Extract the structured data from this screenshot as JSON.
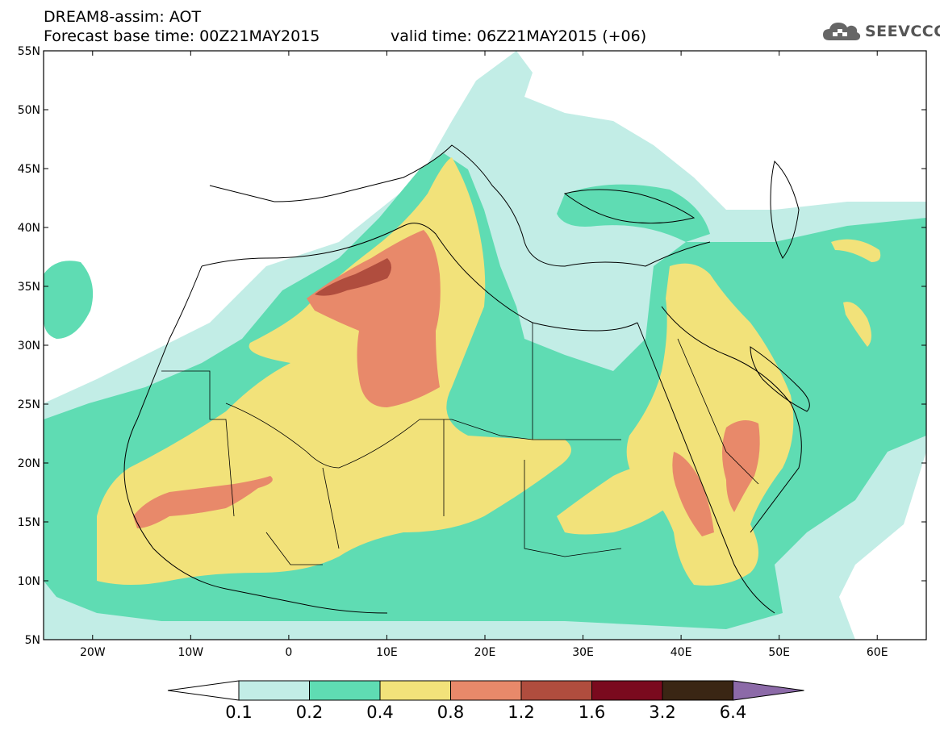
{
  "header": {
    "title_line1": "DREAM8-assim: AOT",
    "title_line2": "Forecast base time: 00Z21MAY2015",
    "valid_time": "valid time: 06Z21MAY2015 (+06)",
    "logo_text": "SEEVCCC"
  },
  "map": {
    "lon_range": [
      -25,
      65
    ],
    "lat_range": [
      5,
      55
    ],
    "lat_ticks": [
      "55N",
      "50N",
      "45N",
      "40N",
      "35N",
      "30N",
      "25N",
      "20N",
      "15N",
      "10N",
      "5N"
    ],
    "lon_ticks": [
      "20W",
      "10W",
      "0",
      "10E",
      "20E",
      "30E",
      "40E",
      "50E",
      "60E"
    ]
  },
  "colorbar": {
    "levels": [
      "0.1",
      "0.2",
      "0.4",
      "0.8",
      "1.2",
      "1.6",
      "3.2",
      "6.4"
    ],
    "colors": [
      "#ffffff",
      "#c2ede6",
      "#5fdcb3",
      "#f2e27a",
      "#e8896a",
      "#b04d3e",
      "#7a0a1e",
      "#3a2614",
      "#8c6aa8"
    ]
  },
  "colors": {
    "land_bg": "#ffffff",
    "aot_0_1": "#c2ede6",
    "aot_0_2": "#5fdcb3",
    "aot_0_4": "#f2e27a",
    "aot_0_8": "#e8896a",
    "aot_1_2": "#b04d3e",
    "boundary": "#000000"
  }
}
